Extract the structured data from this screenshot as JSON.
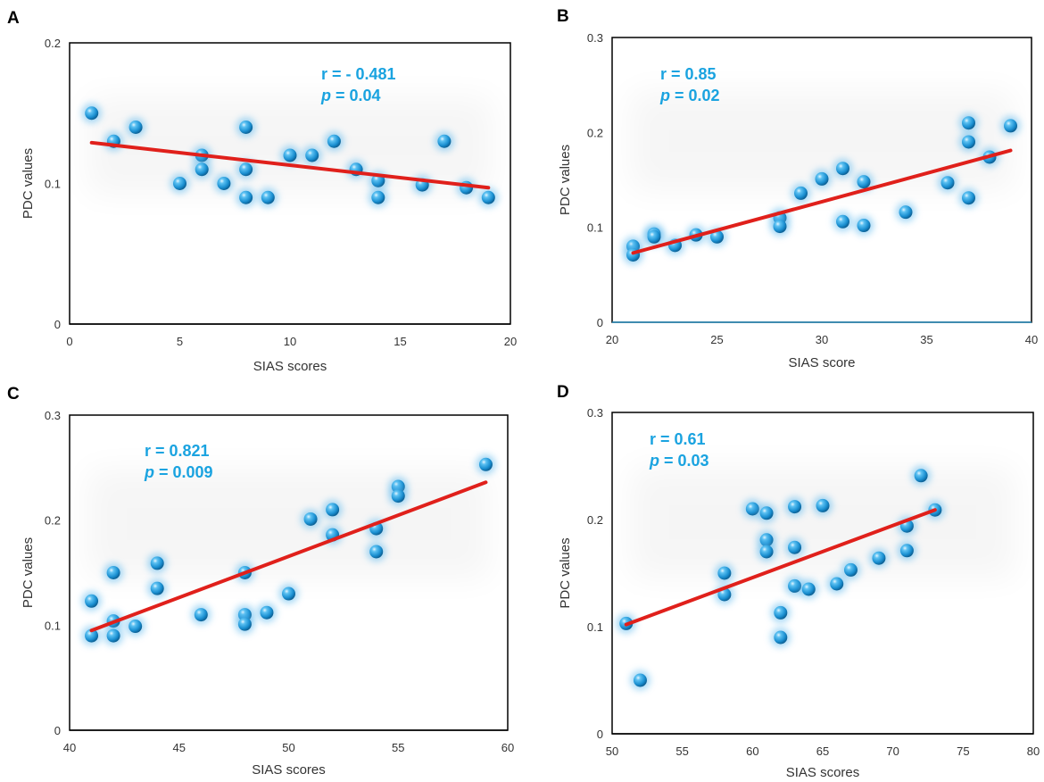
{
  "figure": {
    "marker_color": "#1a8fd1",
    "fit_color": "#e0201b",
    "stat_color": "#1aa3e0"
  },
  "chart_data": [
    {
      "panel": "A",
      "type": "scatter",
      "xlabel": "SIAS scores",
      "ylabel": "PDC values",
      "xlim": [
        0,
        20
      ],
      "ylim": [
        0,
        0.2
      ],
      "xticks": [
        0,
        5,
        10,
        15,
        20
      ],
      "xtick_labels": [
        "0",
        "5",
        "10",
        "15",
        "20"
      ],
      "yticks": [
        0,
        0.1,
        0.2
      ],
      "ytick_labels": [
        "0",
        "0.1",
        "0.2"
      ],
      "r_text": "r = - 0.481",
      "p_label": "p",
      "p_value": " = 0.04",
      "fit": {
        "x": [
          1,
          19
        ],
        "y": [
          0.129,
          0.097
        ]
      },
      "points": [
        {
          "x": 1,
          "y": 0.15
        },
        {
          "x": 2,
          "y": 0.13
        },
        {
          "x": 3,
          "y": 0.14
        },
        {
          "x": 5,
          "y": 0.1
        },
        {
          "x": 6,
          "y": 0.12
        },
        {
          "x": 6,
          "y": 0.11
        },
        {
          "x": 7,
          "y": 0.1
        },
        {
          "x": 8,
          "y": 0.14
        },
        {
          "x": 8,
          "y": 0.11
        },
        {
          "x": 8,
          "y": 0.09
        },
        {
          "x": 9,
          "y": 0.09
        },
        {
          "x": 10,
          "y": 0.12
        },
        {
          "x": 11,
          "y": 0.12
        },
        {
          "x": 12,
          "y": 0.13
        },
        {
          "x": 13,
          "y": 0.11
        },
        {
          "x": 14,
          "y": 0.102
        },
        {
          "x": 14,
          "y": 0.09
        },
        {
          "x": 16,
          "y": 0.099
        },
        {
          "x": 17,
          "y": 0.13
        },
        {
          "x": 18,
          "y": 0.097
        },
        {
          "x": 19,
          "y": 0.09
        }
      ]
    },
    {
      "panel": "B",
      "type": "scatter",
      "xlabel": "SIAS score",
      "ylabel": "PDC values",
      "xlim": [
        20,
        40
      ],
      "ylim": [
        0,
        0.3
      ],
      "xticks": [
        20,
        25,
        30,
        35,
        40
      ],
      "xtick_labels": [
        "20",
        "25",
        "30",
        "35",
        "40"
      ],
      "yticks": [
        0,
        0.1,
        0.2,
        0.3
      ],
      "ytick_labels": [
        "0",
        "0.1",
        "0.2",
        "0.3"
      ],
      "r_text": "r = 0.85",
      "p_label": "p",
      "p_value": " = 0.02",
      "fit": {
        "x": [
          21,
          39
        ],
        "y": [
          0.073,
          0.181
        ]
      },
      "points": [
        {
          "x": 21,
          "y": 0.08
        },
        {
          "x": 21,
          "y": 0.071
        },
        {
          "x": 22,
          "y": 0.093
        },
        {
          "x": 22,
          "y": 0.09
        },
        {
          "x": 23,
          "y": 0.081
        },
        {
          "x": 24,
          "y": 0.092
        },
        {
          "x": 25,
          "y": 0.09
        },
        {
          "x": 28,
          "y": 0.11
        },
        {
          "x": 28,
          "y": 0.101
        },
        {
          "x": 29,
          "y": 0.136
        },
        {
          "x": 30,
          "y": 0.151
        },
        {
          "x": 31,
          "y": 0.162
        },
        {
          "x": 31,
          "y": 0.106
        },
        {
          "x": 32,
          "y": 0.148
        },
        {
          "x": 32,
          "y": 0.102
        },
        {
          "x": 34,
          "y": 0.116
        },
        {
          "x": 36,
          "y": 0.147
        },
        {
          "x": 37,
          "y": 0.21
        },
        {
          "x": 37,
          "y": 0.19
        },
        {
          "x": 37,
          "y": 0.131
        },
        {
          "x": 38,
          "y": 0.174
        },
        {
          "x": 39,
          "y": 0.207
        }
      ]
    },
    {
      "panel": "C",
      "type": "scatter",
      "xlabel": "SIAS scores",
      "ylabel": "PDC values",
      "xlim": [
        40,
        60
      ],
      "ylim": [
        0,
        0.3
      ],
      "xticks": [
        40,
        45,
        50,
        55,
        60
      ],
      "xtick_labels": [
        "40",
        "45",
        "50",
        "55",
        "60"
      ],
      "yticks": [
        0,
        0.1,
        0.2,
        0.3
      ],
      "ytick_labels": [
        "0",
        "0.1",
        "0.2",
        "0.3"
      ],
      "r_text": "r = 0.821",
      "p_label": "p",
      "p_value": " = 0.009",
      "fit": {
        "x": [
          41,
          59
        ],
        "y": [
          0.095,
          0.236
        ]
      },
      "points": [
        {
          "x": 41,
          "y": 0.123
        },
        {
          "x": 41,
          "y": 0.09
        },
        {
          "x": 42,
          "y": 0.15
        },
        {
          "x": 42,
          "y": 0.104
        },
        {
          "x": 42,
          "y": 0.09
        },
        {
          "x": 43,
          "y": 0.099
        },
        {
          "x": 44,
          "y": 0.159
        },
        {
          "x": 44,
          "y": 0.135
        },
        {
          "x": 46,
          "y": 0.11
        },
        {
          "x": 48,
          "y": 0.15
        },
        {
          "x": 48,
          "y": 0.11
        },
        {
          "x": 48,
          "y": 0.101
        },
        {
          "x": 49,
          "y": 0.112
        },
        {
          "x": 50,
          "y": 0.13
        },
        {
          "x": 51,
          "y": 0.201
        },
        {
          "x": 52,
          "y": 0.21
        },
        {
          "x": 52,
          "y": 0.186
        },
        {
          "x": 54,
          "y": 0.192
        },
        {
          "x": 54,
          "y": 0.17
        },
        {
          "x": 55,
          "y": 0.232
        },
        {
          "x": 55,
          "y": 0.223
        },
        {
          "x": 59,
          "y": 0.253
        }
      ]
    },
    {
      "panel": "D",
      "type": "scatter",
      "xlabel": "SIAS scores",
      "ylabel": "PDC values",
      "xlim": [
        50,
        80
      ],
      "ylim": [
        0,
        0.3
      ],
      "xticks": [
        50,
        55,
        60,
        65,
        70,
        75,
        80
      ],
      "xtick_labels": [
        "50",
        "55",
        "60",
        "65",
        "70",
        "75",
        "80"
      ],
      "yticks": [
        0,
        0.1,
        0.2,
        0.3
      ],
      "ytick_labels": [
        "0",
        "0.1",
        "0.2",
        "0.3"
      ],
      "r_text": "r = 0.61",
      "p_label": "p",
      "p_value": " = 0.03",
      "fit": {
        "x": [
          51,
          73
        ],
        "y": [
          0.102,
          0.209
        ]
      },
      "points": [
        {
          "x": 51,
          "y": 0.103
        },
        {
          "x": 52,
          "y": 0.05
        },
        {
          "x": 58,
          "y": 0.15
        },
        {
          "x": 58,
          "y": 0.13
        },
        {
          "x": 60,
          "y": 0.21
        },
        {
          "x": 61,
          "y": 0.206
        },
        {
          "x": 61,
          "y": 0.181
        },
        {
          "x": 61,
          "y": 0.17
        },
        {
          "x": 62,
          "y": 0.113
        },
        {
          "x": 62,
          "y": 0.09
        },
        {
          "x": 63,
          "y": 0.212
        },
        {
          "x": 63,
          "y": 0.174
        },
        {
          "x": 63,
          "y": 0.138
        },
        {
          "x": 64,
          "y": 0.135
        },
        {
          "x": 65,
          "y": 0.213
        },
        {
          "x": 66,
          "y": 0.14
        },
        {
          "x": 67,
          "y": 0.153
        },
        {
          "x": 69,
          "y": 0.164
        },
        {
          "x": 71,
          "y": 0.194
        },
        {
          "x": 71,
          "y": 0.171
        },
        {
          "x": 72,
          "y": 0.241
        },
        {
          "x": 73,
          "y": 0.209
        }
      ]
    }
  ]
}
